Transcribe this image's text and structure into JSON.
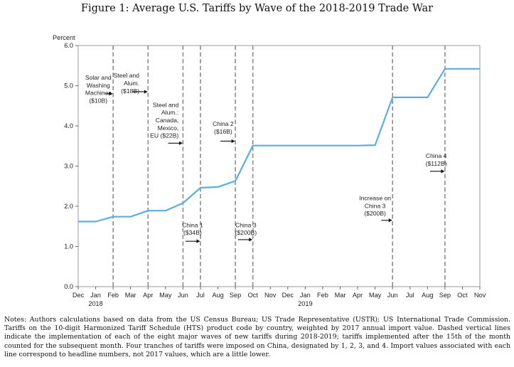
{
  "figure": {
    "title": "Figure 1: Average U.S. Tariffs by Wave of the 2018-2019 Trade War",
    "notes": "Notes: Authors calculations based on data from the US Census Bureau; US Trade Representative (USTR); US International Trade Commission. Tariffs on the 10-digit Harmonized Tariff Schedule (HTS) product code by country, weighted by 2017 annual import value. Dashed vertical lines indicate the implementation of each of the eight major waves of new tariffs during 2018-2019; tariffs implemented after the 15th of the month counted for the subsequent month. Four tranches of tariffs were imposed on China, designated by 1, 2, 3, and 4. Import values associated with each line correspond to headline numbers, not 2017 values, which are a little lower."
  },
  "chart_data": {
    "type": "line",
    "ylabel": "Percent",
    "ylim": [
      0,
      6
    ],
    "yticks": [
      "0.0",
      "1.0",
      "2.0",
      "3.0",
      "4.0",
      "5.0",
      "6.0"
    ],
    "categories": [
      "Dec",
      "Jan",
      "Feb",
      "Mar",
      "Apr",
      "May",
      "Jun",
      "Jul",
      "Aug",
      "Sep",
      "Oct",
      "Nov",
      "Dec",
      "Jan",
      "Feb",
      "Mar",
      "Apr",
      "May",
      "Jun",
      "Jul",
      "Aug",
      "Sep",
      "Oct",
      "Nov"
    ],
    "year_labels": [
      {
        "index": 1,
        "label": "2018"
      },
      {
        "index": 13,
        "label": "2019"
      }
    ],
    "series": [
      {
        "color": "#5aaee3",
        "values": [
          1.62,
          1.62,
          1.74,
          1.74,
          1.89,
          1.89,
          2.08,
          2.46,
          2.48,
          2.63,
          3.51,
          3.51,
          3.51,
          3.51,
          3.51,
          3.51,
          3.51,
          3.52,
          4.71,
          4.71,
          4.71,
          5.42,
          5.42,
          5.42
        ]
      }
    ],
    "wave_lines": [
      2,
      4,
      6,
      7,
      9,
      10,
      18,
      21
    ],
    "annotations": [
      {
        "lines": [
          "Solar and",
          "Washing",
          "Machines",
          "($10B)"
        ],
        "x": 1.15,
        "y": 5.15,
        "anchor": "middle",
        "arrow": {
          "x1": 1.6,
          "x2": 1.98,
          "y": 4.8
        }
      },
      {
        "lines": [
          "Steel and",
          "Alum.",
          "($18B)"
        ],
        "x": 3.5,
        "y": 5.2,
        "anchor": "end",
        "arrow": {
          "x1": 3.1,
          "x2": 3.98,
          "y": 4.85
        }
      },
      {
        "lines": [
          "Steel and",
          "Alum.:",
          "Canada,",
          "Mexico,",
          "EU ($22B)"
        ],
        "x": 5.75,
        "y": 4.47,
        "anchor": "end",
        "arrow": {
          "x1": 5.15,
          "x2": 5.98,
          "y": 3.57
        }
      },
      {
        "lines": [
          "China 2",
          "($16B)"
        ],
        "x": 8.3,
        "y": 4.0,
        "anchor": "middle",
        "arrow": {
          "x1": 8.15,
          "x2": 8.98,
          "y": 3.62
        }
      },
      {
        "lines": [
          "China 1",
          "($34B)"
        ],
        "x": 6.55,
        "y": 1.48,
        "anchor": "middle",
        "arrow": {
          "x1": 6.15,
          "x2": 6.98,
          "y": 1.13
        }
      },
      {
        "lines": [
          "China 3",
          "($200B)"
        ],
        "x": 9.6,
        "y": 1.48,
        "anchor": "middle",
        "arrow": {
          "x1": 9.15,
          "x2": 9.98,
          "y": 1.17
        }
      },
      {
        "lines": [
          "Increase on",
          "China 3",
          "($200B)"
        ],
        "x": 17.0,
        "y": 2.15,
        "anchor": "middle",
        "arrow": {
          "x1": 17.35,
          "x2": 17.98,
          "y": 1.65
        }
      },
      {
        "lines": [
          "China 4",
          "($112B)"
        ],
        "x": 20.5,
        "y": 3.2,
        "anchor": "middle",
        "arrow": {
          "x1": 20.15,
          "x2": 20.98,
          "y": 2.87
        }
      }
    ]
  }
}
